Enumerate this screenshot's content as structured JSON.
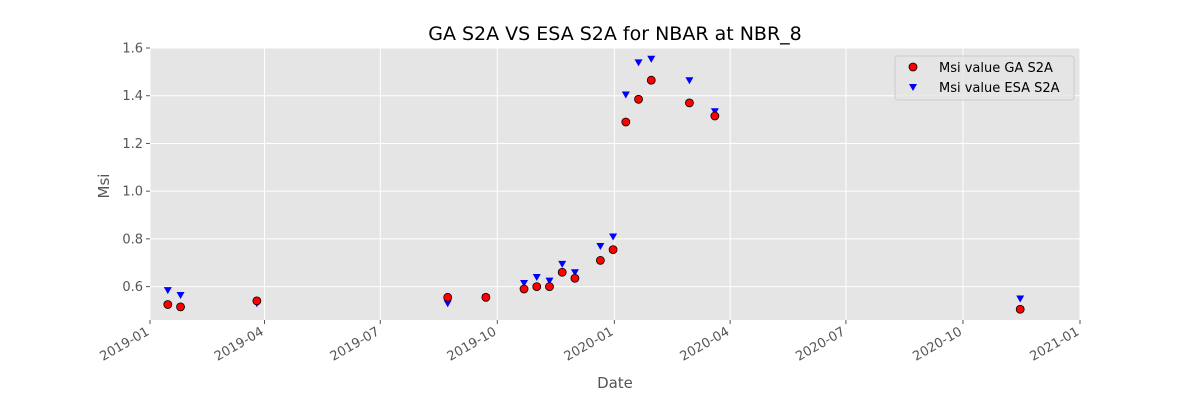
{
  "chart_data": {
    "type": "scatter",
    "title": "GA S2A VS ESA S2A for NBAR at NBR_8",
    "xlabel": "Date",
    "ylabel": "Msi",
    "x_scale": "date",
    "xlim": [
      "2019-01-01",
      "2021-01-01"
    ],
    "ylim": [
      0.46,
      1.6
    ],
    "x_ticks": [
      "2019-01-01",
      "2019-04-01",
      "2019-07-01",
      "2019-10-01",
      "2020-01-01",
      "2020-04-01",
      "2020-07-01",
      "2020-10-01",
      "2021-01-01"
    ],
    "x_tick_labels": [
      "2019-01",
      "2019-04",
      "2019-07",
      "2019-10",
      "2020-01",
      "2020-04",
      "2020-07",
      "2020-10",
      "2021-01"
    ],
    "y_ticks": [
      0.6,
      0.8,
      1.0,
      1.2,
      1.4,
      1.6
    ],
    "y_tick_labels": [
      "0.6",
      "0.8",
      "1.0",
      "1.2",
      "1.4",
      "1.6"
    ],
    "grid": true,
    "legend_position": "top-right",
    "series": [
      {
        "name": "Msi value GA S2A",
        "marker": "circle",
        "color": "#ff0000",
        "edge_color": "#000000",
        "x": [
          "2019-01-15",
          "2019-01-25",
          "2019-03-26",
          "2019-08-23",
          "2019-09-22",
          "2019-10-22",
          "2019-11-01",
          "2019-11-11",
          "2019-11-21",
          "2019-12-01",
          "2019-12-21",
          "2019-12-31",
          "2020-01-10",
          "2020-01-20",
          "2020-01-30",
          "2020-02-29",
          "2020-03-20",
          "2020-11-15"
        ],
        "y": [
          0.525,
          0.515,
          0.54,
          0.555,
          0.555,
          0.59,
          0.6,
          0.6,
          0.66,
          0.635,
          0.71,
          0.755,
          1.29,
          1.385,
          1.465,
          1.37,
          1.315,
          0.505
        ]
      },
      {
        "name": "Msi value ESA S2A",
        "marker": "triangle-down",
        "color": "#0000ff",
        "x": [
          "2019-01-15",
          "2019-01-25",
          "2019-03-26",
          "2019-08-23",
          "2019-09-22",
          "2019-10-22",
          "2019-11-01",
          "2019-11-11",
          "2019-11-21",
          "2019-12-01",
          "2019-12-21",
          "2019-12-31",
          "2020-01-10",
          "2020-01-20",
          "2020-01-30",
          "2020-02-29",
          "2020-03-20",
          "2020-11-15"
        ],
        "y": [
          0.585,
          0.565,
          0.53,
          0.53,
          0.555,
          0.615,
          0.64,
          0.625,
          0.695,
          0.66,
          0.77,
          0.81,
          1.405,
          1.54,
          1.555,
          1.465,
          1.335,
          0.55
        ]
      }
    ]
  }
}
